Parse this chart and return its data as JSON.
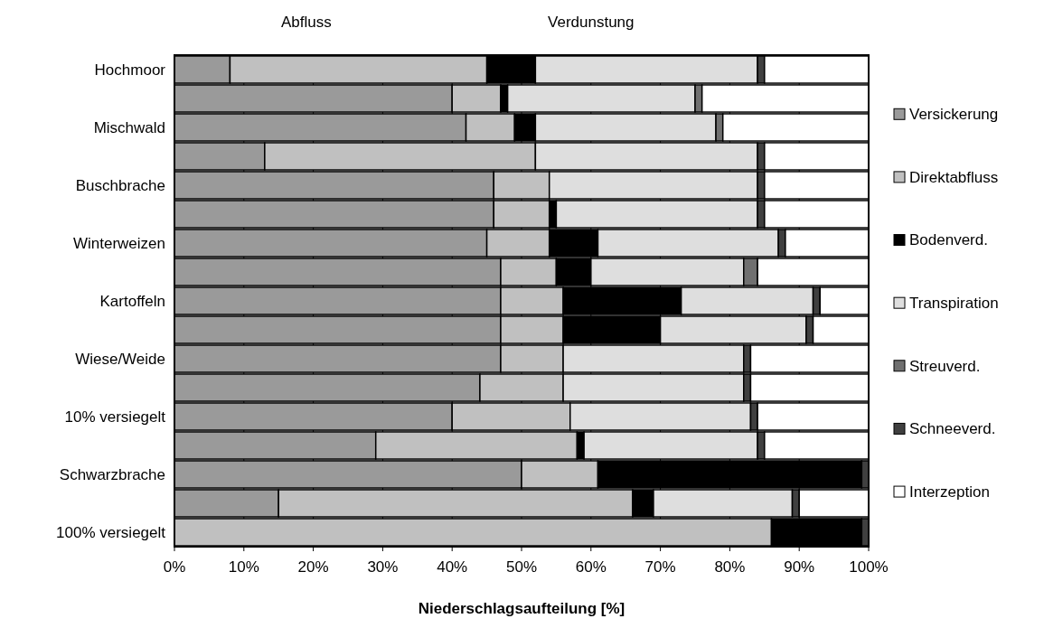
{
  "chart_data": {
    "type": "bar",
    "orientation": "horizontal",
    "stacked": true,
    "categories": [
      "Hochmoor",
      null,
      "Mischwald",
      null,
      "Buschbrache",
      null,
      "Winterweizen",
      null,
      "Kartoffeln",
      null,
      "Wiese/Weide",
      null,
      "10% versiegelt",
      null,
      "Schwarzbrache",
      null,
      "100% versiegelt"
    ],
    "series": [
      {
        "name": "Versickerung",
        "color": "#9a9a9a",
        "values": [
          8,
          40,
          42,
          13,
          46,
          46,
          45,
          47,
          47,
          47,
          47,
          44,
          40,
          29,
          50,
          15,
          0
        ]
      },
      {
        "name": "Direktabfluss",
        "color": "#c0c0c0",
        "values": [
          37,
          7,
          7,
          39,
          8,
          8,
          9,
          8,
          9,
          9,
          9,
          12,
          17,
          29,
          11,
          51,
          86
        ]
      },
      {
        "name": "Bodenverd.",
        "color": "#000000",
        "values": [
          7,
          1,
          3,
          0,
          0,
          1,
          7,
          5,
          17,
          14,
          0,
          0,
          0,
          1,
          38,
          3,
          13
        ]
      },
      {
        "name": "Transpiration",
        "color": "#dedede",
        "values": [
          32,
          27,
          26,
          32,
          30,
          29,
          26,
          22,
          19,
          21,
          26,
          26,
          26,
          25,
          0,
          20,
          0
        ]
      },
      {
        "name": "Streuverd.",
        "color": "#707070",
        "values": [
          0,
          1,
          1,
          0,
          0,
          0,
          0,
          2,
          0,
          0,
          0,
          0,
          0,
          0,
          0,
          0,
          0
        ]
      },
      {
        "name": "Schneeverd.",
        "color": "#404040",
        "values": [
          1,
          0,
          0,
          1,
          1,
          1,
          1,
          0,
          1,
          1,
          1,
          1,
          1,
          1,
          1,
          1,
          1
        ]
      },
      {
        "name": "Interzeption",
        "color": "#ffffff",
        "values": [
          15,
          24,
          21,
          15,
          15,
          15,
          12,
          16,
          7,
          8,
          17,
          17,
          16,
          15,
          0,
          10,
          0
        ]
      }
    ],
    "xlim": [
      0,
      100
    ],
    "xticks": [
      {
        "value": 0,
        "label": "0%"
      },
      {
        "value": 10,
        "label": "10%"
      },
      {
        "value": 20,
        "label": "20%"
      },
      {
        "value": 30,
        "label": "30%"
      },
      {
        "value": 40,
        "label": "40%"
      },
      {
        "value": 50,
        "label": "50%"
      },
      {
        "value": 60,
        "label": "60%"
      },
      {
        "value": 70,
        "label": "70%"
      },
      {
        "value": 80,
        "label": "80%"
      },
      {
        "value": 90,
        "label": "90%"
      },
      {
        "value": 100,
        "label": "100%"
      }
    ],
    "xlabel": "Niederschlagsaufteilung [%]",
    "annotations": [
      "Abfluss",
      "Verdunstung"
    ],
    "grid": "x",
    "legend": "right"
  }
}
